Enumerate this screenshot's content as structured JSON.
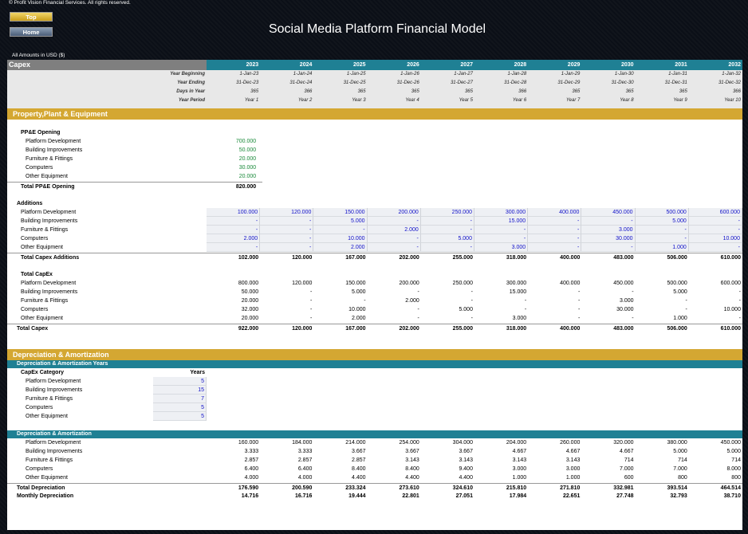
{
  "header": {
    "copyright": "© Profit Vision Financial Services. All rights reserved.",
    "top_label": "Top",
    "home_label": "Home",
    "title": "Social Media Platform Financial Model",
    "amounts_note": "All Amounts in  USD ($)"
  },
  "capex": {
    "title": "Capex",
    "years": [
      "2023",
      "2024",
      "2025",
      "2026",
      "2027",
      "2028",
      "2029",
      "2030",
      "2031",
      "2032"
    ],
    "header_rows": [
      {
        "label": "Year Beginning",
        "values": [
          "1-Jan-23",
          "1-Jan-24",
          "1-Jan-25",
          "1-Jan-26",
          "1-Jan-27",
          "1-Jan-28",
          "1-Jan-29",
          "1-Jan-30",
          "1-Jan-31",
          "1-Jan-32"
        ]
      },
      {
        "label": "Year Ending",
        "values": [
          "31-Dec-23",
          "31-Dec-24",
          "31-Dec-25",
          "31-Dec-26",
          "31-Dec-27",
          "31-Dec-28",
          "31-Dec-29",
          "31-Dec-30",
          "31-Dec-31",
          "31-Dec-32"
        ]
      },
      {
        "label": "Days in Year",
        "values": [
          "365",
          "366",
          "365",
          "365",
          "365",
          "366",
          "365",
          "365",
          "365",
          "366"
        ]
      },
      {
        "label": "Year Period",
        "values": [
          "Year 1",
          "Year 2",
          "Year 3",
          "Year 4",
          "Year 5",
          "Year 6",
          "Year 7",
          "Year 8",
          "Year 9",
          "Year 10"
        ]
      }
    ]
  },
  "ppe": {
    "section_title": "Property,Plant & Equipment",
    "opening_title": "PP&E Opening",
    "opening_items": [
      {
        "label": "Platform Development",
        "value": "700.000"
      },
      {
        "label": "Building Improvements",
        "value": "50.000"
      },
      {
        "label": "Furniture & Fittings",
        "value": "20.000"
      },
      {
        "label": "Computers",
        "value": "30.000"
      },
      {
        "label": "Other Equipment",
        "value": "20.000"
      }
    ],
    "opening_total": {
      "label": "Total PP&E Opening",
      "value": "820.000"
    },
    "additions_title": "Additions",
    "additions": [
      {
        "label": "Platform Development",
        "values": [
          "100.000",
          "120.000",
          "150.000",
          "200.000",
          "250.000",
          "300.000",
          "400.000",
          "450.000",
          "500.000",
          "600.000"
        ]
      },
      {
        "label": "Building Improvements",
        "values": [
          "-",
          "-",
          "5.000",
          "-",
          "-",
          "15.000",
          "-",
          "-",
          "5.000",
          "-"
        ]
      },
      {
        "label": "Furniture & Fittings",
        "values": [
          "-",
          "-",
          "-",
          "2.000",
          "-",
          "-",
          "-",
          "3.000",
          "-",
          "-"
        ]
      },
      {
        "label": "Computers",
        "values": [
          "2.000",
          "-",
          "10.000",
          "-",
          "5.000",
          "-",
          "-",
          "30.000",
          "-",
          "10.000"
        ]
      },
      {
        "label": "Other Equipment",
        "values": [
          "-",
          "-",
          "2.000",
          "-",
          "-",
          "3.000",
          "-",
          "-",
          "1.000",
          "-"
        ]
      }
    ],
    "additions_total": {
      "label": "Total Capex Additions",
      "values": [
        "102.000",
        "120.000",
        "167.000",
        "202.000",
        "255.000",
        "318.000",
        "400.000",
        "483.000",
        "506.000",
        "610.000"
      ]
    },
    "total_capex_title": "Total CapEx",
    "total_capex": [
      {
        "label": "Platform Development",
        "values": [
          "800.000",
          "120.000",
          "150.000",
          "200.000",
          "250.000",
          "300.000",
          "400.000",
          "450.000",
          "500.000",
          "600.000"
        ]
      },
      {
        "label": "Building Improvements",
        "values": [
          "50.000",
          "-",
          "5.000",
          "-",
          "-",
          "15.000",
          "-",
          "-",
          "5.000",
          "-"
        ]
      },
      {
        "label": "Furniture & Fittings",
        "values": [
          "20.000",
          "-",
          "-",
          "2.000",
          "-",
          "-",
          "-",
          "3.000",
          "-",
          "-"
        ]
      },
      {
        "label": "Computers",
        "values": [
          "32.000",
          "-",
          "10.000",
          "-",
          "5.000",
          "-",
          "-",
          "30.000",
          "-",
          "10.000"
        ]
      },
      {
        "label": "Other Equipment",
        "values": [
          "20.000",
          "-",
          "2.000",
          "-",
          "-",
          "3.000",
          "-",
          "-",
          "1.000",
          "-"
        ]
      }
    ],
    "total_capex_sum": {
      "label": "Total Capex",
      "values": [
        "922.000",
        "120.000",
        "167.000",
        "202.000",
        "255.000",
        "318.000",
        "400.000",
        "483.000",
        "506.000",
        "610.000"
      ]
    }
  },
  "da": {
    "section_title": "Depreciation & Amortization",
    "years_title": "Depreciation & Amortization Years",
    "category_header": "CapEx Category",
    "years_header": "Years",
    "years_items": [
      {
        "label": "Platform Development",
        "value": "5"
      },
      {
        "label": "Building Improvements",
        "value": "15"
      },
      {
        "label": "Furniture & Fittings",
        "value": "7"
      },
      {
        "label": "Computers",
        "value": "5"
      },
      {
        "label": "Other Equipment",
        "value": "5"
      }
    ],
    "schedule_title": "Depreciation & Amortization",
    "schedule": [
      {
        "label": "Platform Development",
        "values": [
          "160.000",
          "184.000",
          "214.000",
          "254.000",
          "304.000",
          "204.000",
          "260.000",
          "320.000",
          "380.000",
          "450.000"
        ]
      },
      {
        "label": "Building Improvements",
        "values": [
          "3.333",
          "3.333",
          "3.667",
          "3.667",
          "3.667",
          "4.667",
          "4.667",
          "4.667",
          "5.000",
          "5.000"
        ]
      },
      {
        "label": "Furniture & Fittings",
        "values": [
          "2.857",
          "2.857",
          "2.857",
          "3.143",
          "3.143",
          "3.143",
          "3.143",
          "714",
          "714",
          "714"
        ]
      },
      {
        "label": "Computers",
        "values": [
          "6.400",
          "6.400",
          "8.400",
          "8.400",
          "9.400",
          "3.000",
          "3.000",
          "7.000",
          "7.000",
          "8.000"
        ]
      },
      {
        "label": "Other Equipment",
        "values": [
          "4.000",
          "4.000",
          "4.400",
          "4.400",
          "4.400",
          "1.000",
          "1.000",
          "600",
          "800",
          "800"
        ]
      }
    ],
    "total_dep": {
      "label": "Total Depreciation",
      "values": [
        "176.590",
        "200.590",
        "233.324",
        "273.610",
        "324.610",
        "215.810",
        "271.810",
        "332.981",
        "393.514",
        "464.514"
      ]
    },
    "monthly_dep": {
      "label": "Monthly Depreciation",
      "values": [
        "14.716",
        "16.716",
        "19.444",
        "22.801",
        "27.051",
        "17.984",
        "22.651",
        "27.748",
        "32.793",
        "38.710"
      ]
    }
  },
  "colors": {
    "teal": "#1f8094",
    "gold": "#d4a732",
    "input_blue": "#1010c8",
    "opening_green": "#1a8a3a"
  }
}
